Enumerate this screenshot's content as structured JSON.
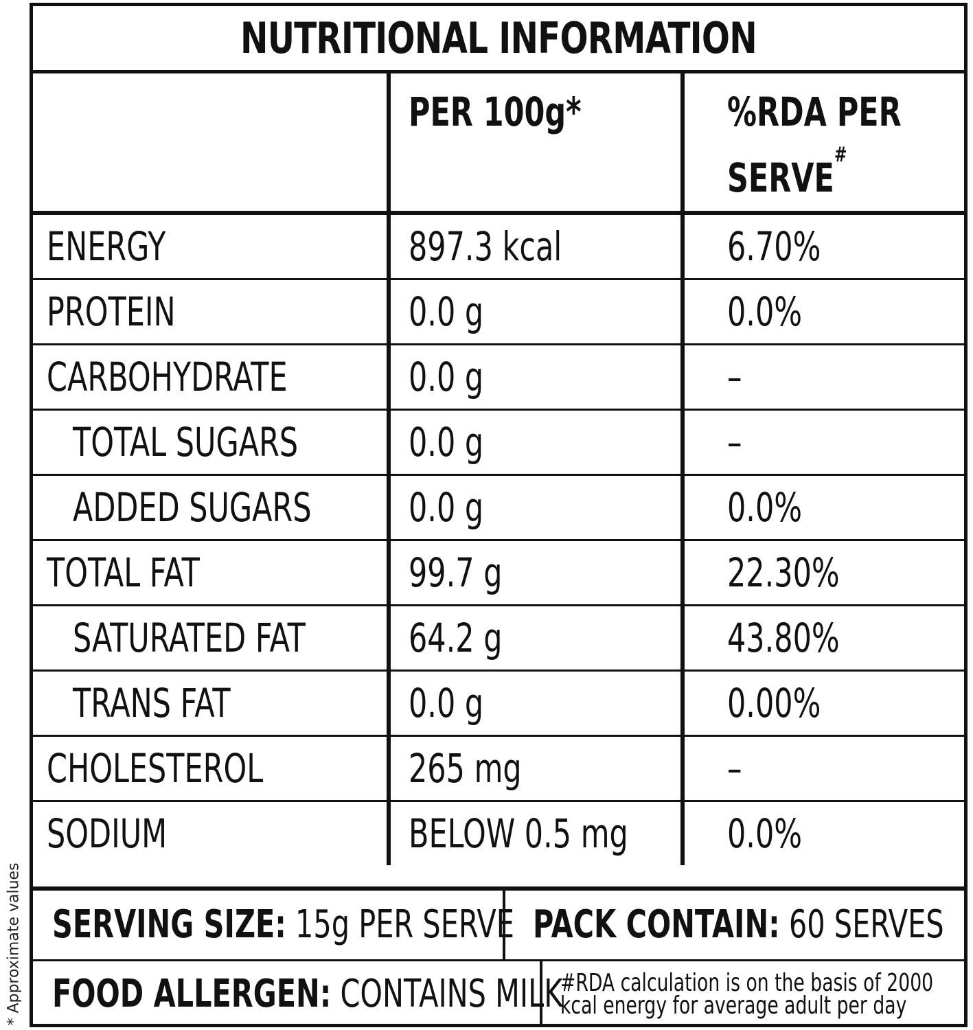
{
  "side_note": "* Approximate values",
  "title": "NUTRITIONAL INFORMATION",
  "header": {
    "col1": "",
    "col2": "PER 100g*",
    "col3_line1": "%RDA PER",
    "col3_line2": "SERVE",
    "col3_mark": "#"
  },
  "rows": [
    {
      "nutrient": "ENERGY",
      "per100": "897.3 kcal",
      "rda": "6.70%"
    },
    {
      "nutrient": "PROTEIN",
      "per100": "0.0 g",
      "rda": "0.0%"
    },
    {
      "nutrient": "CARBOHYDRATE",
      "per100": "0.0 g",
      "rda": "–"
    },
    {
      "nutrient": "TOTAL SUGARS",
      "per100": "0.0 g",
      "rda": "–"
    },
    {
      "nutrient": "ADDED SUGARS",
      "per100": "0.0 g",
      "rda": "0.0%"
    },
    {
      "nutrient": "TOTAL FAT",
      "per100": "99.7 g",
      "rda": "22.30%"
    },
    {
      "nutrient": "SATURATED FAT",
      "per100": "64.2 g",
      "rda": "43.80%"
    },
    {
      "nutrient": "TRANS FAT",
      "per100": "0.0 g",
      "rda": "0.00%"
    },
    {
      "nutrient": "CHOLESTEROL",
      "per100": "265 mg",
      "rda": "–"
    },
    {
      "nutrient": "SODIUM",
      "per100": "BELOW 0.5 mg",
      "rda": "0.0%"
    }
  ],
  "footer": {
    "serving_label": "SERVING SIZE:",
    "serving_value": " 15g PER SERVE",
    "pack_label": "PACK CONTAIN:",
    "pack_value": " 60 SERVES",
    "allergen_label": "FOOD ALLERGEN:",
    "allergen_value": " CONTAINS MILK",
    "rda_note_line1": "#RDA calculation is on the basis of 2000",
    "rda_note_line2": "kcal energy for average adult per day"
  }
}
